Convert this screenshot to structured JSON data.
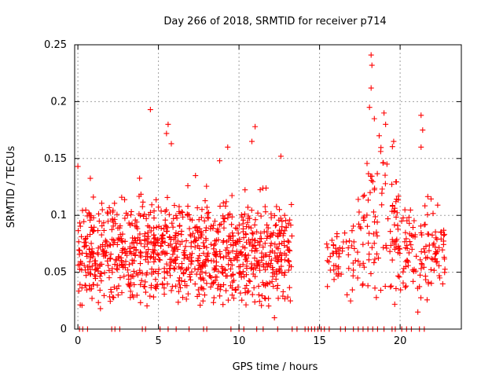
{
  "chart_data": {
    "type": "scatter",
    "title": "Day 266 of 2018, SRMTID for receiver p714",
    "xlabel": "GPS time / hours",
    "ylabel": "SRMTID / TECUs",
    "xlim": [
      -0.2,
      23.8
    ],
    "ylim": [
      0,
      0.25
    ],
    "xticks": [
      0,
      5,
      10,
      15,
      20
    ],
    "xtick_labels": [
      "0",
      "5",
      "10",
      "15",
      "20"
    ],
    "yticks": [
      0,
      0.05,
      0.1,
      0.15,
      0.2,
      0.25
    ],
    "ytick_labels": [
      "0",
      "0.05",
      "0.1",
      "0.15",
      "0.2",
      "0.25"
    ],
    "grid": true,
    "marker": "+",
    "color": "#ff0000",
    "segments": [
      {
        "t0": 0.0,
        "t1": 13.3,
        "density": 150,
        "base": 0.068,
        "spread": 0.022
      },
      {
        "t0": 15.4,
        "t1": 17.4,
        "density": 55,
        "base": 0.06,
        "spread": 0.018
      },
      {
        "t0": 17.4,
        "t1": 19.8,
        "density": 80,
        "base": 0.098,
        "spread": 0.035
      },
      {
        "t0": 19.8,
        "t1": 22.8,
        "density": 85,
        "base": 0.07,
        "spread": 0.022
      }
    ],
    "highlights": [
      {
        "x": 4.5,
        "y": 0.193
      },
      {
        "x": 5.6,
        "y": 0.18
      },
      {
        "x": 5.5,
        "y": 0.172
      },
      {
        "x": 5.8,
        "y": 0.163
      },
      {
        "x": 9.3,
        "y": 0.16
      },
      {
        "x": 11.0,
        "y": 0.178
      },
      {
        "x": 10.8,
        "y": 0.165
      },
      {
        "x": 12.6,
        "y": 0.152
      },
      {
        "x": 7.3,
        "y": 0.135
      },
      {
        "x": 8.8,
        "y": 0.148
      },
      {
        "x": 12.2,
        "y": 0.01
      },
      {
        "x": 0.0,
        "y": 0.143
      },
      {
        "x": 18.2,
        "y": 0.241
      },
      {
        "x": 18.25,
        "y": 0.232
      },
      {
        "x": 18.2,
        "y": 0.212
      },
      {
        "x": 18.1,
        "y": 0.195
      },
      {
        "x": 18.4,
        "y": 0.185
      },
      {
        "x": 19.0,
        "y": 0.19
      },
      {
        "x": 19.1,
        "y": 0.18
      },
      {
        "x": 18.7,
        "y": 0.17
      },
      {
        "x": 19.6,
        "y": 0.165
      },
      {
        "x": 21.3,
        "y": 0.188
      },
      {
        "x": 21.4,
        "y": 0.175
      },
      {
        "x": 21.3,
        "y": 0.16
      },
      {
        "x": 21.1,
        "y": 0.015
      },
      {
        "x": 1.4,
        "y": 0.018
      }
    ],
    "zero_points": [
      0.1,
      0.3,
      0.6,
      2.1,
      2.3,
      2.6,
      4.0,
      4.2,
      5.1,
      5.6,
      6.1,
      6.9,
      7.8,
      8.0,
      9.5,
      10.0,
      10.3,
      11.1,
      11.5,
      12.4,
      13.3,
      13.6,
      14.1,
      14.3,
      14.5,
      14.7,
      14.9,
      15.1,
      15.3,
      15.6,
      16.3,
      16.6,
      17.1,
      17.4,
      17.7,
      18.0,
      18.3,
      18.6,
      19.0,
      19.5,
      19.7,
      20.1,
      20.4,
      20.7,
      21.2,
      21.5
    ]
  }
}
